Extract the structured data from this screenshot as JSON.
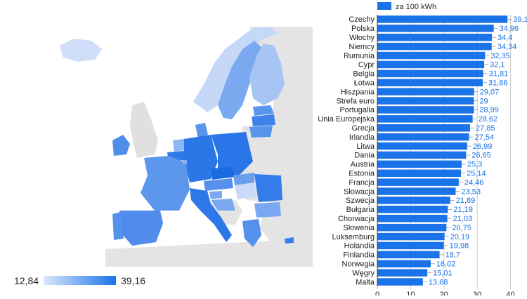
{
  "map": {
    "scale_min": "12,84",
    "scale_max": "39,16",
    "color_light": "#dbe8fd",
    "color_dark": "#1a73e8",
    "land_color": "#e4e4e4",
    "sea_color": "#ffffff"
  },
  "chart_data": {
    "type": "bar",
    "orientation": "horizontal",
    "legend": {
      "label": "za 100 kWh",
      "position": "top"
    },
    "bar_color": "#1a73e8",
    "value_label_color": "#1a73e8",
    "categories": [
      "Czechy",
      "Polska",
      "Włochy",
      "Niemcy",
      "Rumunia",
      "Cypr",
      "Belgia",
      "Łotwa",
      "Hiszpania",
      "Strefa euro",
      "Portugalia",
      "Unia Europejska",
      "Grecja",
      "Irlandia",
      "Litwa",
      "Dania",
      "Austria",
      "Estonia",
      "Francja",
      "Słowacja",
      "Szwecja",
      "Bułgaria",
      "Chorwacja",
      "Słowenia",
      "Luksemburg",
      "Holandia",
      "Finlandia",
      "Norwegia",
      "Węgry",
      "Malta"
    ],
    "values": [
      39.1,
      34.96,
      34.4,
      34.34,
      32.35,
      32.1,
      31.81,
      31.66,
      29.07,
      29,
      28.99,
      28.62,
      27.85,
      27.54,
      26.99,
      26.65,
      25.3,
      25.14,
      24.46,
      23.53,
      21.89,
      21.19,
      21.03,
      20.75,
      20.19,
      19.98,
      18.7,
      16.02,
      15.01,
      13.68
    ],
    "value_labels": [
      "39,1",
      "34,96",
      "34,4",
      "34,34",
      "32,35",
      "32,1",
      "31,81",
      "31,66",
      "29,07",
      "29",
      "28,99",
      "28,62",
      "27,85",
      "27,54",
      "26,99",
      "26,65",
      "25,3",
      "25,14",
      "24,46",
      "23,53",
      "21,89",
      "21,19",
      "21,03",
      "20,75",
      "20,19",
      "19,98",
      "18,7",
      "16,02",
      "15,01",
      "13,68"
    ],
    "x_ticks": [
      0,
      10,
      20,
      30,
      40
    ],
    "x_tick_labels": [
      "0",
      "10",
      "20",
      "30",
      "40"
    ],
    "xlim": [
      0,
      42
    ],
    "grid": true
  }
}
